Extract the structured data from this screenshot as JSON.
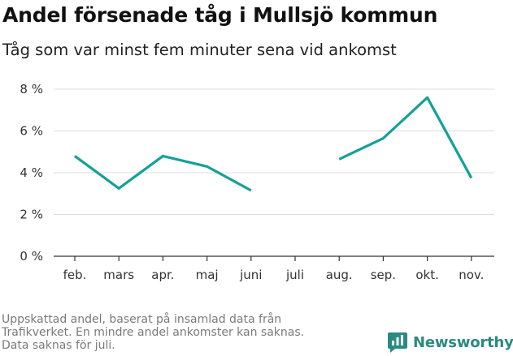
{
  "title": "Andel försenade tåg i Mullsjö kommun",
  "subtitle": "Tåg som var minst fem minuter sena vid ankomst",
  "footnote": [
    "Uppskattad andel, baserat på insamlad data från",
    "Trafikverket. En mindre andel ankomster kan saknas.",
    "Data saknas för juli."
  ],
  "brand": "Newsworthy",
  "colors": {
    "line": "#14a197",
    "grid": "#dddddd",
    "brand": "#2b8a80"
  },
  "chart_data": {
    "type": "line",
    "categories": [
      "feb.",
      "mars",
      "apr.",
      "maj",
      "juni",
      "juli",
      "aug.",
      "sep.",
      "okt.",
      "nov."
    ],
    "series": [
      {
        "values": [
          4.8,
          3.25,
          4.8,
          4.3,
          3.15,
          null,
          4.65,
          5.65,
          7.6,
          3.75
        ]
      }
    ],
    "yticks": [
      0,
      2,
      4,
      6,
      8
    ],
    "ytick_labels": [
      "0 %",
      "2 %",
      "4 %",
      "6 %",
      "8 %"
    ],
    "ylim": [
      0,
      8
    ],
    "grid": true,
    "legend": "none"
  }
}
